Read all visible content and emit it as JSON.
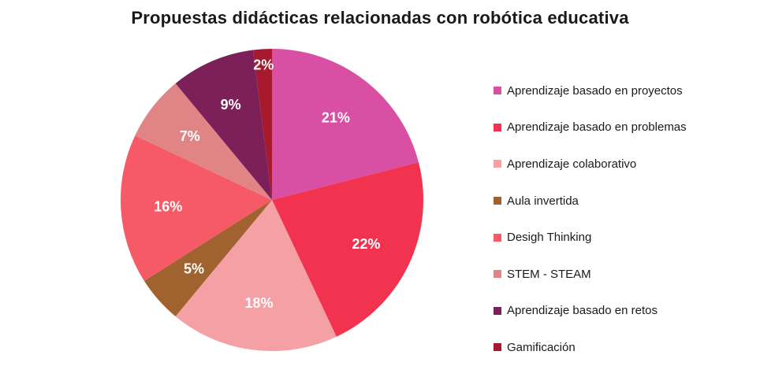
{
  "chart_data": {
    "type": "pie",
    "title": "Propuestas didácticas relacionadas con robótica educativa",
    "categories": [
      "Aprendizaje basado en proyectos",
      "Aprendizaje basado en problemas",
      "Aprendizaje colaborativo",
      "Aula invertida",
      "Desigh Thinking",
      "STEM - STEAM",
      "Aprendizaje basado en retos",
      "Gamificación"
    ],
    "values": [
      21,
      22,
      18,
      5,
      16,
      7,
      9,
      2
    ],
    "data_labels": [
      "21%",
      "22%",
      "18%",
      "5%",
      "16%",
      "7%",
      "9%",
      "2%"
    ],
    "colors": [
      "#D94FA3",
      "#F2334F",
      "#F4A0A4",
      "#A0632F",
      "#F65A66",
      "#E08486",
      "#7D1F58",
      "#A6192E"
    ],
    "legend_position": "right"
  }
}
